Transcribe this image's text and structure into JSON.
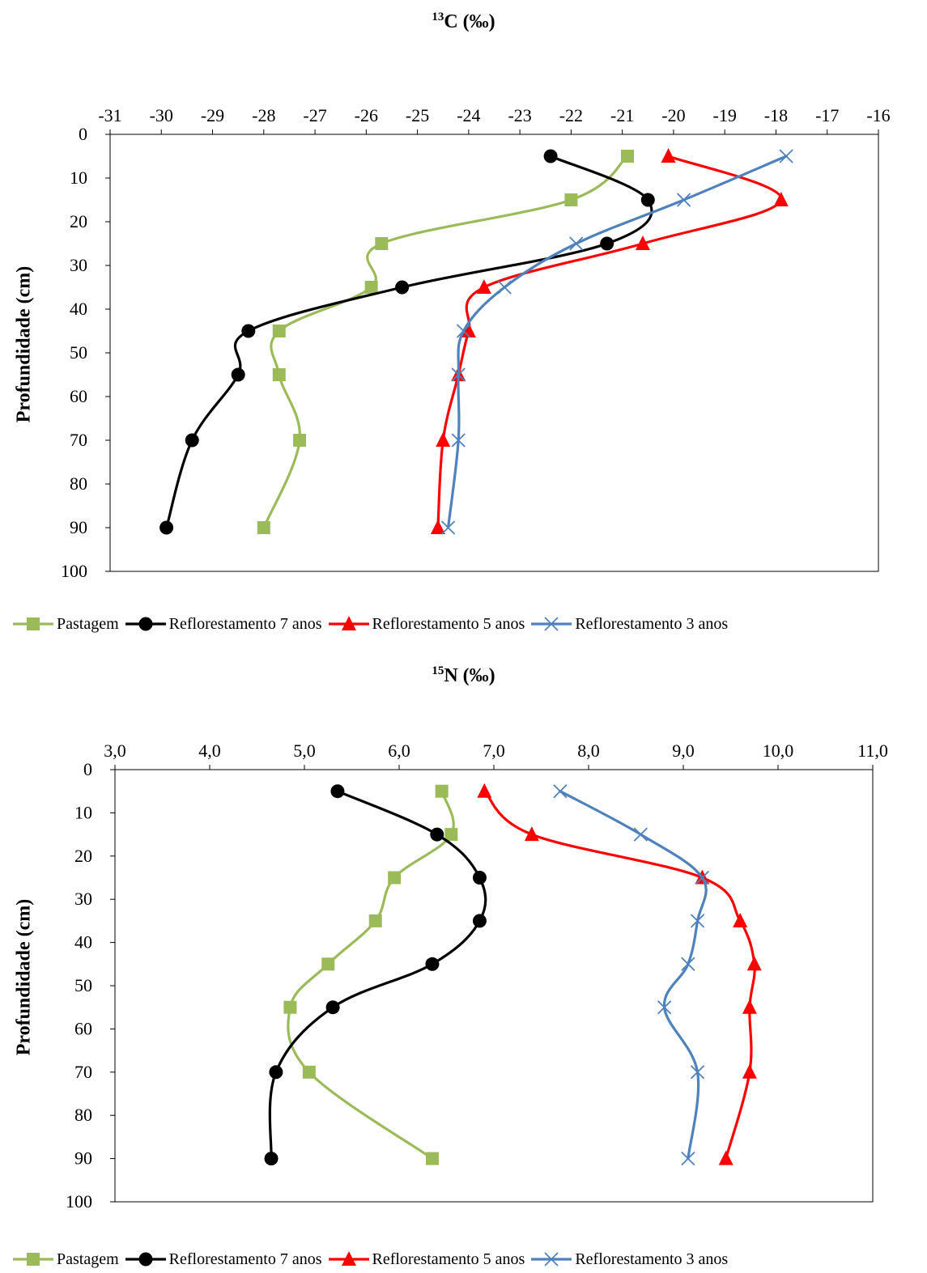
{
  "chart_data": [
    {
      "type": "line",
      "title_sup": "13",
      "title_main": "C (‰)",
      "ylabel": "Profundidade (cm)",
      "xlim": [
        -31,
        -16
      ],
      "x_ticks": [
        "-31",
        "-30",
        "-29",
        "-28",
        "-27",
        "-26",
        "-25",
        "-24",
        "-23",
        "-22",
        "-21",
        "-20",
        "-19",
        "-18",
        "-17",
        "-16"
      ],
      "ylim": [
        0,
        100
      ],
      "y_ticks": [
        "0",
        "10",
        "20",
        "30",
        "40",
        "50",
        "60",
        "70",
        "80",
        "90",
        "100"
      ],
      "x_axis_position": "top",
      "y_axis_inverted": true,
      "grid": false,
      "legend_position": "bottom",
      "series": [
        {
          "name": "Pastagem",
          "color": "#9BBB59",
          "marker": "square",
          "points": [
            [
              -20.9,
              5
            ],
            [
              -22.0,
              15
            ],
            [
              -25.7,
              25
            ],
            [
              -25.9,
              35
            ],
            [
              -27.7,
              45
            ],
            [
              -27.7,
              55
            ],
            [
              -27.3,
              70
            ],
            [
              -28.0,
              90
            ]
          ]
        },
        {
          "name": "Reflorestamento 7 anos",
          "color": "#000000",
          "marker": "circle",
          "points": [
            [
              -22.4,
              5
            ],
            [
              -20.5,
              15
            ],
            [
              -21.3,
              25
            ],
            [
              -25.3,
              35
            ],
            [
              -28.3,
              45
            ],
            [
              -28.5,
              55
            ],
            [
              -29.4,
              70
            ],
            [
              -29.9,
              90
            ]
          ]
        },
        {
          "name": "Reflorestamento 5 anos",
          "color": "#FF0000",
          "marker": "triangle",
          "points": [
            [
              -20.1,
              5
            ],
            [
              -17.9,
              15
            ],
            [
              -20.6,
              25
            ],
            [
              -23.7,
              35
            ],
            [
              -24.0,
              45
            ],
            [
              -24.2,
              55
            ],
            [
              -24.5,
              70
            ],
            [
              -24.6,
              90
            ]
          ]
        },
        {
          "name": "Reflorestamento 3 anos",
          "color": "#4F81BD",
          "marker": "x",
          "points": [
            [
              -17.8,
              5
            ],
            [
              -19.8,
              15
            ],
            [
              -21.9,
              25
            ],
            [
              -23.3,
              35
            ],
            [
              -24.1,
              45
            ],
            [
              -24.2,
              55
            ],
            [
              -24.2,
              70
            ],
            [
              -24.4,
              90
            ]
          ]
        }
      ]
    },
    {
      "type": "line",
      "title_sup": "15",
      "title_main": "N (‰)",
      "ylabel": "Profundidade (cm)",
      "xlim": [
        3.0,
        11.0
      ],
      "x_ticks": [
        "3,0",
        "4,0",
        "5,0",
        "6,0",
        "7,0",
        "8,0",
        "9,0",
        "10,0",
        "11,0"
      ],
      "ylim": [
        0,
        100
      ],
      "y_ticks": [
        "0",
        "10",
        "20",
        "30",
        "40",
        "50",
        "60",
        "70",
        "80",
        "90",
        "100"
      ],
      "x_axis_position": "top",
      "y_axis_inverted": true,
      "grid": false,
      "legend_position": "bottom",
      "series": [
        {
          "name": "Pastagem",
          "color": "#9BBB59",
          "marker": "square",
          "points": [
            [
              6.45,
              5
            ],
            [
              6.55,
              15
            ],
            [
              5.95,
              25
            ],
            [
              5.75,
              35
            ],
            [
              5.25,
              45
            ],
            [
              4.85,
              55
            ],
            [
              5.05,
              70
            ],
            [
              6.35,
              90
            ]
          ]
        },
        {
          "name": "Reflorestamento 7 anos",
          "color": "#000000",
          "marker": "circle",
          "points": [
            [
              5.35,
              5
            ],
            [
              6.4,
              15
            ],
            [
              6.85,
              25
            ],
            [
              6.85,
              35
            ],
            [
              6.35,
              45
            ],
            [
              5.3,
              55
            ],
            [
              4.7,
              70
            ],
            [
              4.65,
              90
            ]
          ]
        },
        {
          "name": "Reflorestamento 5 anos",
          "color": "#FF0000",
          "marker": "triangle",
          "points": [
            [
              6.9,
              5
            ],
            [
              7.4,
              15
            ],
            [
              9.2,
              25
            ],
            [
              9.6,
              35
            ],
            [
              9.75,
              45
            ],
            [
              9.7,
              55
            ],
            [
              9.7,
              70
            ],
            [
              9.45,
              90
            ]
          ]
        },
        {
          "name": "Reflorestamento 3 anos",
          "color": "#4F81BD",
          "marker": "x",
          "points": [
            [
              7.7,
              5
            ],
            [
              8.55,
              15
            ],
            [
              9.2,
              25
            ],
            [
              9.15,
              35
            ],
            [
              9.05,
              45
            ],
            [
              8.8,
              55
            ],
            [
              9.15,
              70
            ],
            [
              9.05,
              90
            ]
          ]
        }
      ]
    }
  ]
}
